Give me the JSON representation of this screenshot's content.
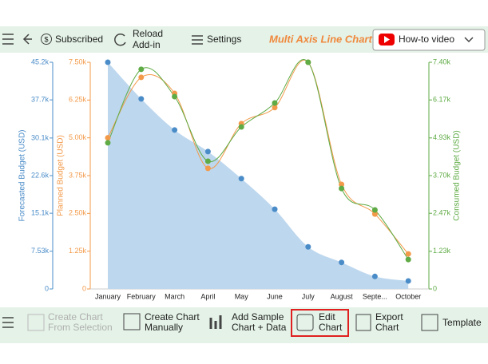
{
  "toolbar": {
    "subscribed": "Subscribed",
    "reload": [
      "Reload",
      "Add-in"
    ],
    "settings": "Settings",
    "howto": "How-to video"
  },
  "bottom_toolbar": {
    "from_selection": [
      "Create Chart",
      "From Selection"
    ],
    "manually": [
      "Create Chart",
      "Manually"
    ],
    "sample": [
      "Add Sample",
      "Chart + Data"
    ],
    "edit": [
      "Edit",
      "Chart"
    ],
    "export": [
      "Export",
      "Chart"
    ],
    "template": "Template"
  },
  "chart_data": {
    "type": "line",
    "title": "Multi Axis Line Chart",
    "categories": [
      "January",
      "February",
      "March",
      "April",
      "May",
      "June",
      "July",
      "August",
      "Septe...",
      "October"
    ],
    "y_label": "Forecasted Budget (USD)",
    "y2_label": "Planned Budget (USD)",
    "y3_label": "Consumed Budget (USD)",
    "ylim": [
      0,
      45200
    ],
    "yticks": [
      0,
      {
        "value": 7530,
        "label": "7.53k"
      },
      {
        "value": 15100,
        "label": "15.1k"
      },
      {
        "value": 22600,
        "label": "22.6k"
      },
      {
        "value": 30100,
        "label": "30.1k"
      },
      {
        "value": 37700,
        "label": "37.7k"
      },
      {
        "value": 45200,
        "label": "45.2k"
      }
    ],
    "y2lim": [
      0,
      7500
    ],
    "y2ticks": [
      0,
      {
        "value": 1250,
        "label": "1.25k"
      },
      {
        "value": 2500,
        "label": "2.50k"
      },
      {
        "value": 3750,
        "label": "3.75k"
      },
      {
        "value": 5000,
        "label": "5.00k"
      },
      {
        "value": 6250,
        "label": "6.25k"
      },
      {
        "value": 7500,
        "label": "7.50k"
      }
    ],
    "y3lim": [
      0,
      7400
    ],
    "y3ticks": [
      0,
      {
        "value": 1230,
        "label": "1.23k"
      },
      {
        "value": 2470,
        "label": "2.47k"
      },
      {
        "value": 3700,
        "label": "3.70k"
      },
      {
        "value": 4930,
        "label": "4.93k"
      },
      {
        "value": 6170,
        "label": "6.17k"
      },
      {
        "value": 7400,
        "label": "7.40k"
      }
    ],
    "series": [
      {
        "name": "Forecasted Budget (USD)",
        "axis": "y",
        "color": "#4a8cc8",
        "fill": "#bdd7ee",
        "values": [
          45200,
          37900,
          31700,
          27400,
          22000,
          15900,
          8400,
          5300,
          2500,
          1600
        ]
      },
      {
        "name": "Planned Budget (USD)",
        "axis": "y2",
        "color": "#f39a4a",
        "values": [
          5000,
          7000,
          6470,
          3990,
          5470,
          6000,
          7500,
          3460,
          2480,
          1160
        ]
      },
      {
        "name": "Consumed Budget (USD)",
        "axis": "y3",
        "color": "#5fab45",
        "values": [
          4770,
          7170,
          6280,
          4170,
          5290,
          6070,
          7400,
          3280,
          2580,
          960
        ]
      }
    ]
  }
}
